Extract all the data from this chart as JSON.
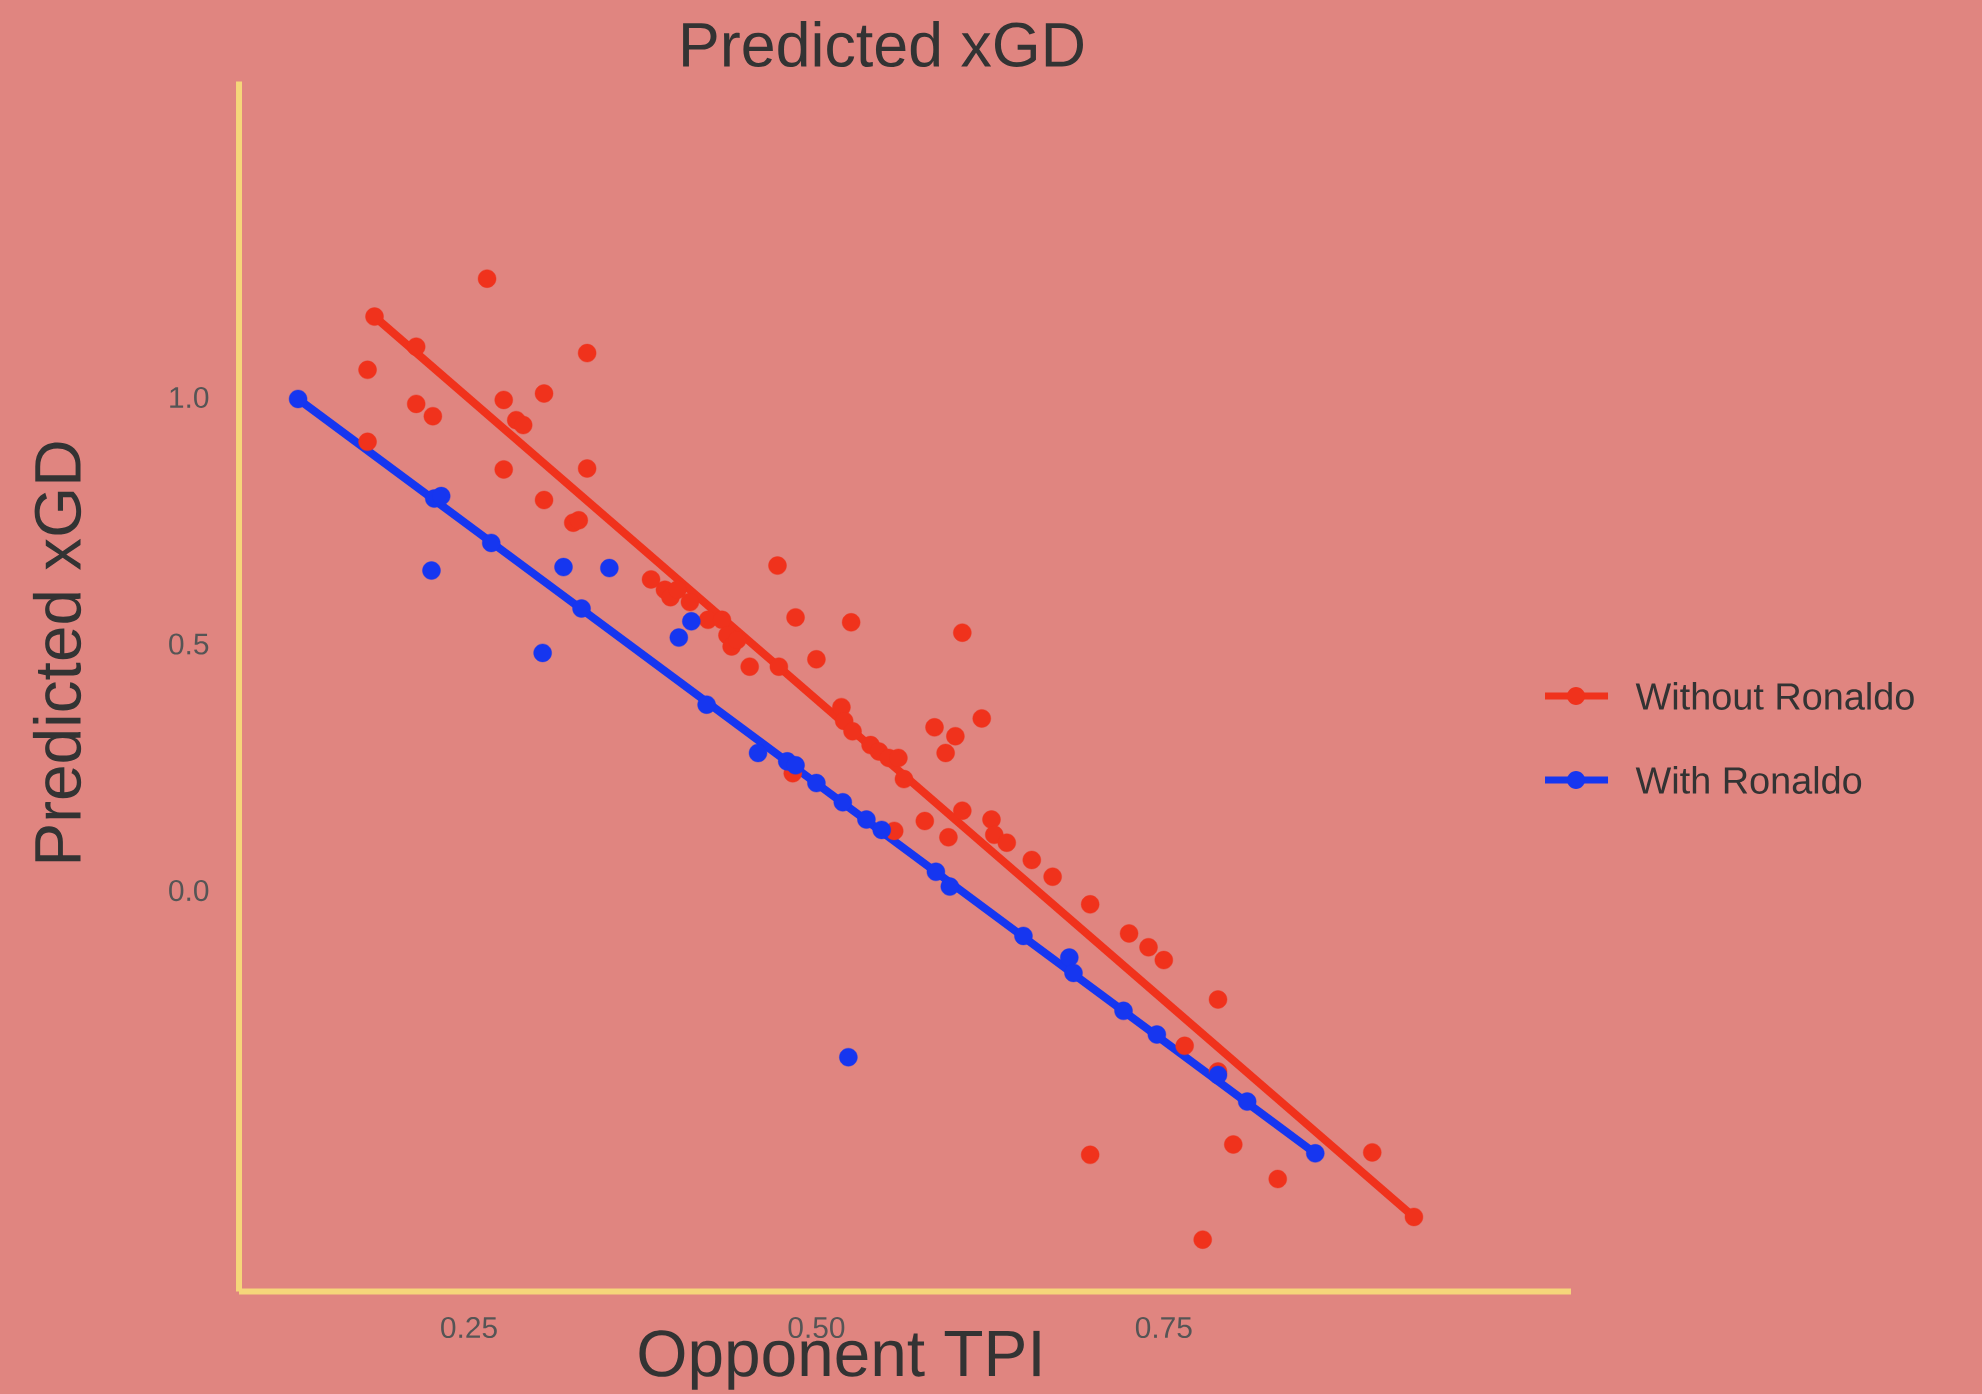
{
  "chart_data": {
    "type": "scatter",
    "title": "Predicted xGD",
    "xlabel": "Opponent TPI",
    "ylabel": "Predicted xGD",
    "xlim": [
      0.0845,
      1.043
    ],
    "ylim": [
      -0.813,
      1.641
    ],
    "xticks": [
      {
        "value": 0.25,
        "label": "0.25"
      },
      {
        "value": 0.5,
        "label": "0.50"
      },
      {
        "value": 0.75,
        "label": "0.75"
      }
    ],
    "yticks": [
      {
        "value": 0,
        "label": "0.0"
      },
      {
        "value": 0.5,
        "label": "0.5"
      },
      {
        "value": 1,
        "label": "1.0"
      }
    ],
    "grid": false,
    "legend": "right",
    "marker": "circle",
    "series": [
      {
        "name": "Without Ronaldo",
        "type": "scatter",
        "color": "#f0321c",
        "x": [
          0.182,
          0.177,
          0.177,
          0.212,
          0.212,
          0.224,
          0.263,
          0.275,
          0.275,
          0.284,
          0.289,
          0.304,
          0.304,
          0.325,
          0.329,
          0.335,
          0.335,
          0.381,
          0.391,
          0.395,
          0.4,
          0.409,
          0.422,
          0.432,
          0.436,
          0.439,
          0.443,
          0.452,
          0.473,
          0.472,
          0.485,
          0.5,
          0.483,
          0.518,
          0.52,
          0.526,
          0.525,
          0.539,
          0.545,
          0.552,
          0.559,
          0.563,
          0.556,
          0.578,
          0.585,
          0.593,
          0.595,
          0.6,
          0.605,
          0.605,
          0.619,
          0.626,
          0.628,
          0.637,
          0.655,
          0.67,
          0.697,
          0.697,
          0.725,
          0.739,
          0.75,
          0.765,
          0.789,
          0.789,
          0.8,
          0.778,
          0.832,
          0.9,
          0.93
        ],
        "values": [
          1.164,
          1.056,
          0.91,
          1.103,
          0.987,
          0.962,
          1.241,
          0.995,
          0.854,
          0.954,
          0.944,
          1.008,
          0.792,
          0.746,
          0.751,
          0.856,
          1.09,
          0.631,
          0.61,
          0.595,
          0.61,
          0.585,
          0.549,
          0.549,
          0.518,
          0.495,
          0.508,
          0.454,
          0.454,
          0.659,
          0.554,
          0.469,
          0.238,
          0.372,
          0.344,
          0.323,
          0.544,
          0.295,
          0.282,
          0.269,
          0.269,
          0.226,
          0.121,
          0.141,
          0.331,
          0.279,
          0.108,
          0.313,
          0.523,
          0.162,
          0.349,
          0.144,
          0.113,
          0.097,
          0.062,
          0.028,
          -0.028,
          -0.536,
          -0.087,
          -0.115,
          -0.141,
          -0.315,
          -0.221,
          -0.367,
          -0.515,
          -0.708,
          -0.585,
          -0.531,
          -0.662
        ]
      },
      {
        "type": "line",
        "marker": "none",
        "color": "#f0321c",
        "x": [
          0.182,
          0.93
        ],
        "values": [
          1.164,
          -0.662
        ]
      },
      {
        "name": "With Ronaldo",
        "type": "scatter",
        "color": "#1636f0",
        "x": [
          0.127,
          0.223,
          0.225,
          0.23,
          0.266,
          0.303,
          0.318,
          0.331,
          0.351,
          0.401,
          0.41,
          0.421,
          0.458,
          0.479,
          0.485,
          0.5,
          0.519,
          0.523,
          0.536,
          0.547,
          0.586,
          0.596,
          0.649,
          0.682,
          0.685,
          0.721,
          0.745,
          0.789,
          0.81,
          0.859
        ],
        "values": [
          0.997,
          0.649,
          0.795,
          0.8,
          0.705,
          0.482,
          0.656,
          0.572,
          0.654,
          0.513,
          0.546,
          0.377,
          0.279,
          0.262,
          0.254,
          0.218,
          0.179,
          -0.338,
          0.144,
          0.123,
          0.038,
          0.008,
          -0.092,
          -0.136,
          -0.167,
          -0.244,
          -0.292,
          -0.374,
          -0.428,
          -0.533
        ]
      },
      {
        "type": "line",
        "marker": "none",
        "color": "#1636f0",
        "x": [
          0.127,
          0.859
        ],
        "values": [
          0.997,
          -0.533
        ]
      }
    ]
  }
}
